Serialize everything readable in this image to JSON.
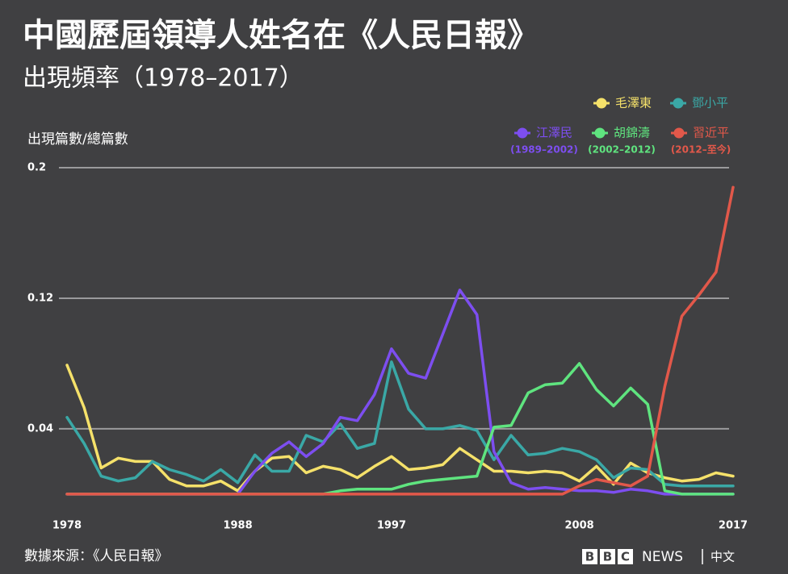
{
  "chart_data": {
    "type": "line",
    "title": "中國歷屆領導人姓名在《人民日報》",
    "subtitle": "出現頻率（1978–2017）",
    "y_label": "出現篇數/總篇數",
    "source": "數據來源：《人民日報》",
    "x": [
      1978,
      1979,
      1980,
      1981,
      1982,
      1983,
      1984,
      1985,
      1986,
      1987,
      1988,
      1989,
      1990,
      1991,
      1992,
      1993,
      1994,
      1995,
      1996,
      1997,
      1998,
      1999,
      2000,
      2001,
      2002,
      2003,
      2004,
      2005,
      2006,
      2007,
      2008,
      2009,
      2010,
      2011,
      2012,
      2013,
      2014,
      2015,
      2016,
      2017
    ],
    "xlim": [
      1978,
      2017
    ],
    "xticks": [
      1978,
      1988,
      1997,
      2008,
      2017
    ],
    "ylim": [
      -0.006,
      0.2
    ],
    "yticks": [
      0.04,
      0.12,
      0.2
    ],
    "grid": true,
    "series": [
      {
        "name": "毛澤東",
        "color": "#f5e16a",
        "values": [
          0.079,
          0.053,
          0.016,
          0.022,
          0.02,
          0.02,
          0.009,
          0.005,
          0.005,
          0.008,
          0.002,
          0.014,
          0.022,
          0.023,
          0.013,
          0.017,
          0.015,
          0.01,
          0.017,
          0.023,
          0.015,
          0.016,
          0.018,
          0.028,
          0.021,
          0.014,
          0.014,
          0.013,
          0.014,
          0.013,
          0.008,
          0.017,
          0.006,
          0.019,
          0.013,
          0.01,
          0.008,
          0.009,
          0.013,
          0.011
        ]
      },
      {
        "name": "鄧小平",
        "color": "#3aa8a6",
        "values": [
          0.047,
          0.031,
          0.011,
          0.008,
          0.01,
          0.02,
          0.015,
          0.012,
          0.008,
          0.015,
          0.007,
          0.024,
          0.014,
          0.014,
          0.036,
          0.032,
          0.043,
          0.028,
          0.031,
          0.081,
          0.052,
          0.04,
          0.04,
          0.042,
          0.039,
          0.021,
          0.036,
          0.024,
          0.025,
          0.028,
          0.026,
          0.021,
          0.01,
          0.016,
          0.015,
          0.006,
          0.005,
          0.005,
          0.005,
          0.005
        ]
      },
      {
        "name": "江澤民",
        "term": "(1989–2002)",
        "color": "#7d4ef0",
        "values": [
          0,
          0,
          0,
          0,
          0,
          0,
          0,
          0,
          0,
          0,
          0,
          0.014,
          0.025,
          0.032,
          0.023,
          0.031,
          0.047,
          0.045,
          0.061,
          0.089,
          0.074,
          0.071,
          0.098,
          0.125,
          0.11,
          0.026,
          0.007,
          0.003,
          0.004,
          0.003,
          0.002,
          0.002,
          0.001,
          0.003,
          0.002,
          0,
          0,
          0,
          0,
          0
        ]
      },
      {
        "name": "胡錦濤",
        "term": "(2002–2012)",
        "color": "#5fe47f",
        "values": [
          0,
          0,
          0,
          0,
          0,
          0,
          0,
          0,
          0,
          0,
          0,
          0,
          0,
          0,
          0,
          0,
          0.002,
          0.003,
          0.003,
          0.003,
          0.006,
          0.008,
          0.009,
          0.01,
          0.011,
          0.041,
          0.042,
          0.062,
          0.067,
          0.068,
          0.08,
          0.064,
          0.054,
          0.065,
          0.055,
          0.002,
          0,
          0,
          0,
          0
        ]
      },
      {
        "name": "習近平",
        "term": "(2012–至今)",
        "color": "#e2584a",
        "values": [
          0,
          0,
          0,
          0,
          0,
          0,
          0,
          0,
          0,
          0,
          0,
          0,
          0,
          0,
          0,
          0,
          0,
          0,
          0,
          0,
          0,
          0,
          0,
          0,
          0,
          0,
          0,
          0,
          0,
          0,
          0.005,
          0.009,
          0.007,
          0.005,
          0.011,
          0.066,
          0.109,
          0.122,
          0.136,
          0.188
        ]
      }
    ]
  },
  "branding": {
    "bbc": [
      "B",
      "B",
      "C"
    ],
    "news": "NEWS",
    "lang": "中文"
  }
}
